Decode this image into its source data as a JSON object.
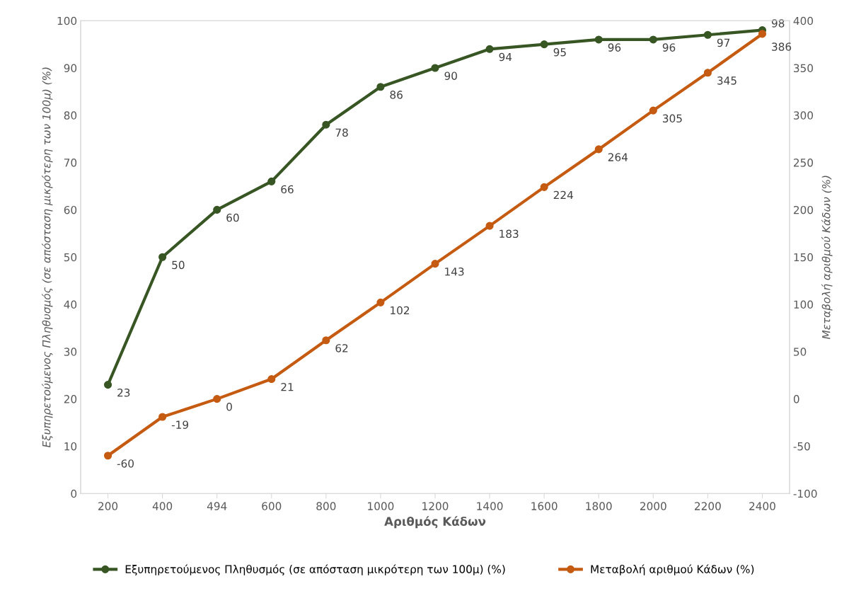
{
  "chart_data": {
    "type": "line",
    "xlabel": "Αριθμός Κάδων",
    "ylabel": "Εξυπηρετούμενος Πληθυσμός (σε απόσταση μικρότερη των 100μ) (%)",
    "y2label": "Μεταβολή αριθμού Κάδων (%)",
    "categories": [
      "200",
      "400",
      "494",
      "600",
      "800",
      "1000",
      "1200",
      "1400",
      "1600",
      "1800",
      "2000",
      "2200",
      "2400"
    ],
    "series": [
      {
        "name": "Εξυπηρετούμενος Πληθυσμός (σε απόσταση μικρότερη των 100μ) (%)",
        "color": "#375623",
        "values": [
          23,
          50,
          60,
          66,
          78,
          86,
          90,
          94,
          95,
          96,
          96,
          97,
          98
        ]
      },
      {
        "name": "Μεταβολή αριθμού Κάδων (%)",
        "color": "#c55a11",
        "axis": "y2",
        "values": [
          -60,
          -19,
          0,
          21,
          62,
          102,
          143,
          183,
          224,
          264,
          305,
          345,
          386
        ]
      }
    ],
    "ylim": [
      0,
      100
    ],
    "yticks": [
      0,
      10,
      20,
      30,
      40,
      50,
      60,
      70,
      80,
      90,
      100
    ],
    "y2lim": [
      -100,
      400
    ],
    "y2ticks": [
      -100,
      -50,
      0,
      50,
      100,
      150,
      200,
      250,
      300,
      350,
      400
    ],
    "data_labels": true,
    "marker": "circle",
    "line_style": "solid",
    "grid": false,
    "legend": "bottom"
  }
}
